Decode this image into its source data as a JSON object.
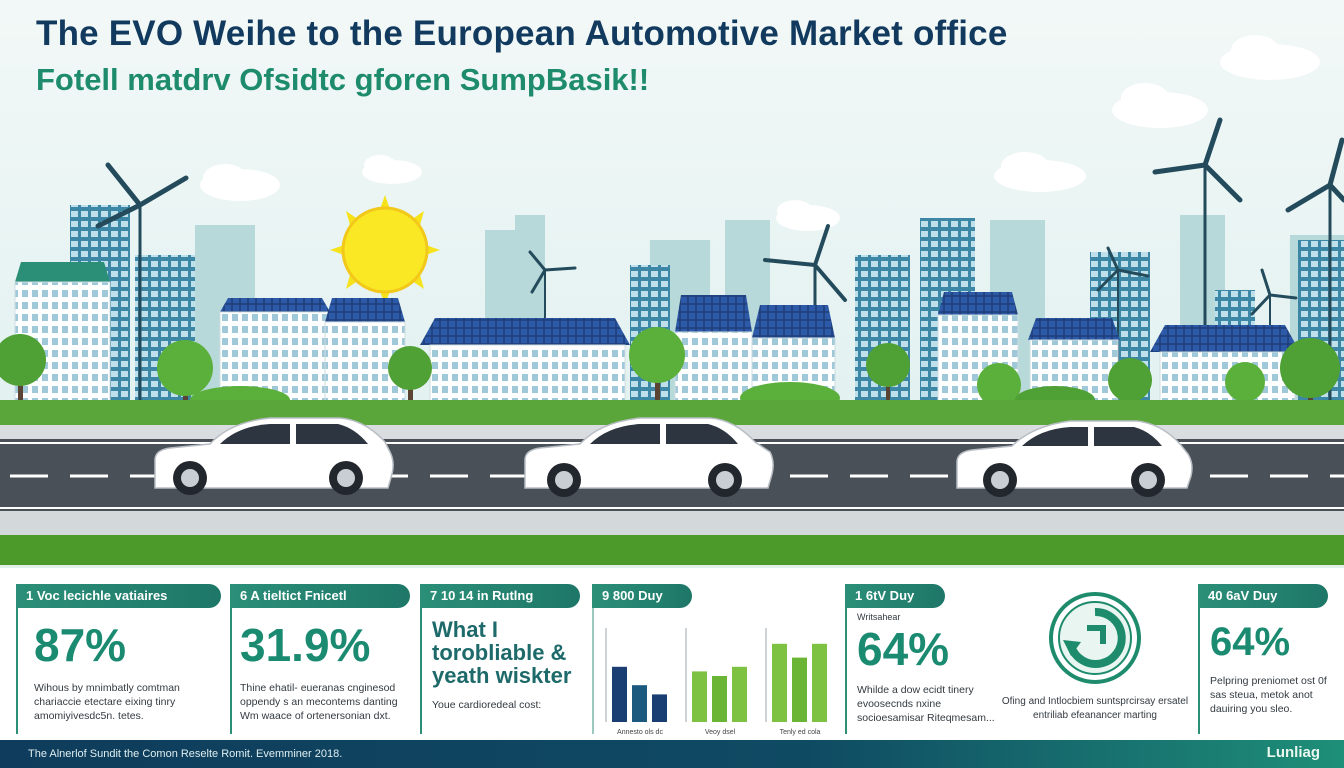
{
  "header": {
    "title": "The EVO Weihe to the European Automotive Market office",
    "subtitle": "Fotell matdrv Ofsidtc gforen SumpBasik!!"
  },
  "colors": {
    "sky": "#e6f3f4",
    "road": "#4a5058",
    "grass": "#4c9a2a",
    "accent_green": "#1a8a70",
    "navy": "#123a5e"
  },
  "stats": {
    "card1": {
      "tab": "1 Voc lecichle vatiaires",
      "value": "87%",
      "desc": "Wihous by mnimbatly comtman chariaccie etectare eixing tinry amomiyivesdc5n. tetes."
    },
    "card2": {
      "tab": "6 A tieltict Fnicetl",
      "value": "31.9%",
      "desc": "Thine ehatil- eueranas cnginesod oppendy s an mecontems danting Wm waace of ortenersonian dxt."
    },
    "card3": {
      "tab": "7 10 14 in Rutlng",
      "text": "What I torobliable & yeath wiskter",
      "note": "Youe cardioredeal cost:"
    },
    "card4": {
      "tab": "9 800 Duy",
      "bar_labels": [
        "Annesto ols dc",
        "Veoy dsel",
        "Tenly ed cola"
      ]
    },
    "card5": {
      "tab": "1 6tV Duy",
      "note": "Writsahear",
      "value": "64%",
      "desc": "Whilde a dow ecidt tinery evoosecnds nxine socioesamisar Riteqmesam..."
    },
    "card6": {
      "icon_caption": "Ofing and Intlocbiem suntsprcirsay ersatel entriliab efeanancer marting"
    },
    "card7": {
      "tab": "40 6aV Duy",
      "value": "64%",
      "desc": "Pelpring preniomet ost 0f sas steua, metok anot dauiring you sleo."
    }
  },
  "footer": {
    "text": "The Alnerlof Sundit the Comon Reselte Romit. Evemminer 2018.",
    "logo": "Lunliag"
  },
  "chart_data": {
    "type": "bar",
    "categories": [
      "Annesto ols dc",
      "Veoy dsel",
      "Tenly ed cola"
    ],
    "series": [
      {
        "values": [
          60,
          55,
          85
        ]
      },
      {
        "values": [
          40,
          50,
          70
        ]
      },
      {
        "values": [
          30,
          60,
          85
        ]
      }
    ],
    "colors": [
      "#1b3e72",
      "#2b8f78",
      "#7dc243"
    ]
  }
}
